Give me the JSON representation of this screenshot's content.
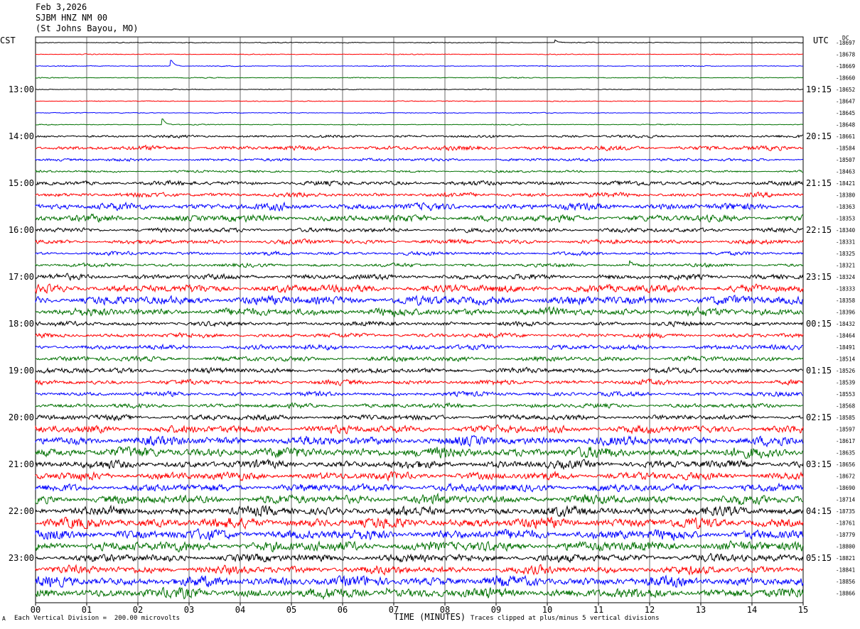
{
  "header": {
    "date": "Feb 3,2026",
    "station": "SJBM HNZ NM 00",
    "location": "(St Johns Bayou, MO)"
  },
  "left_tz": "CST",
  "right_tz": "UTC",
  "dc_label": "DC",
  "footer": {
    "scale_note": "Each Vertical Division =  200.00 microvolts",
    "clip_note": "Traces clipped at plus/minus 5 vertical divisions",
    "corner_mark": "A"
  },
  "colors": {
    "trace_cycle": [
      "#000000",
      "#ff0000",
      "#0000ff",
      "#007000"
    ],
    "grid": "#000000"
  },
  "chart_data": {
    "type": "helicorder",
    "xlabel": "TIME (MINUTES)",
    "x_ticks": [
      "00",
      "01",
      "02",
      "03",
      "04",
      "05",
      "06",
      "07",
      "08",
      "09",
      "10",
      "11",
      "12",
      "13",
      "14",
      "15"
    ],
    "xlim": [
      0,
      15
    ],
    "left_hour_labels": [
      "13:00",
      "14:00",
      "15:00",
      "16:00",
      "17:00",
      "18:00",
      "19:00",
      "20:00",
      "21:00",
      "22:00",
      "23:00"
    ],
    "right_hour_labels": [
      "19:15",
      "20:15",
      "21:15",
      "22:15",
      "23:15",
      "00:15",
      "01:15",
      "02:15",
      "03:15",
      "04:15",
      "05:15"
    ],
    "dc_offsets": [
      "-18697",
      "-18678",
      "-18669",
      "-18660",
      "-18652",
      "-18647",
      "-18645",
      "-18648",
      "-18661",
      "-18584",
      "-18507",
      "-18463",
      "-18421",
      "-18380",
      "-18363",
      "-18353",
      "-18340",
      "-18331",
      "-18325",
      "-18321",
      "-18324",
      "-18333",
      "-18358",
      "-18396",
      "-18432",
      "-18464",
      "-18491",
      "-18514",
      "-18526",
      "-18539",
      "-18553",
      "-18568",
      "-18585",
      "-18597",
      "-18617",
      "-18635",
      "-18656",
      "-18672",
      "-18690",
      "-18714",
      "-18735",
      "-18761",
      "-18779",
      "-18800",
      "-18821",
      "-18841",
      "-18856",
      "-18866"
    ],
    "trace_noise_level": [
      0.4,
      0.4,
      0.4,
      0.4,
      0.4,
      0.4,
      0.4,
      0.4,
      1.2,
      2.0,
      1.3,
      1.0,
      2.0,
      2.0,
      3.0,
      3.0,
      2.0,
      2.0,
      1.6,
      1.6,
      2.4,
      3.5,
      4.0,
      3.5,
      2.0,
      2.0,
      2.2,
      2.2,
      2.4,
      2.2,
      2.0,
      2.0,
      2.4,
      3.5,
      4.0,
      4.5,
      3.5,
      3.5,
      3.5,
      4.0,
      4.0,
      4.5,
      4.5,
      4.5,
      3.5,
      3.5,
      4.5,
      4.5
    ],
    "spikes": [
      {
        "trace": 0,
        "minute": 10.15,
        "amp": 4
      },
      {
        "trace": 2,
        "minute": 2.63,
        "amp": 14
      },
      {
        "trace": 7,
        "minute": 2.47,
        "amp": 11
      },
      {
        "trace": 19,
        "minute": 11.6,
        "amp": 8
      },
      {
        "trace": 47,
        "minute": 6.85,
        "amp": 9
      }
    ]
  }
}
